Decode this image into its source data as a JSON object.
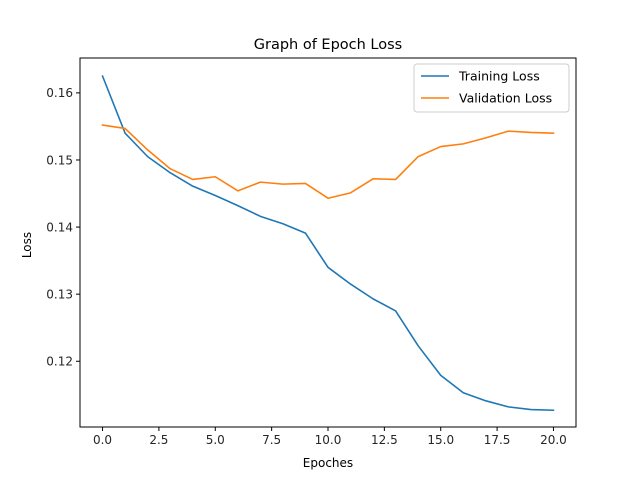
{
  "chart_data": {
    "type": "line",
    "title": "Graph of Epoch Loss",
    "xlabel": "Epoches",
    "ylabel": "Loss",
    "xlim": [
      -1.0,
      21.0
    ],
    "ylim": [
      0.1102,
      0.1652
    ],
    "xticks": [
      "0.0",
      "2.5",
      "5.0",
      "7.5",
      "10.0",
      "12.5",
      "15.0",
      "17.5",
      "20.0"
    ],
    "xtick_values": [
      0,
      2.5,
      5,
      7.5,
      10,
      12.5,
      15,
      17.5,
      20
    ],
    "yticks": [
      "0.12",
      "0.13",
      "0.14",
      "0.15",
      "0.16"
    ],
    "ytick_values": [
      0.12,
      0.13,
      0.14,
      0.15,
      0.16
    ],
    "grid": false,
    "legend_position": "top-right",
    "x": [
      0,
      1,
      2,
      3,
      4,
      5,
      6,
      7,
      8,
      9,
      10,
      11,
      12,
      13,
      14,
      15,
      16,
      17,
      18,
      19,
      20
    ],
    "series": [
      {
        "name": "Training Loss",
        "color": "#1f77b4",
        "values": [
          0.1625,
          0.154,
          0.1505,
          0.1481,
          0.1461,
          0.1447,
          0.1432,
          0.1416,
          0.1405,
          0.1391,
          0.134,
          0.1315,
          0.1293,
          0.1275,
          0.1223,
          0.1179,
          0.1153,
          0.1141,
          0.1132,
          0.1128,
          0.1127
        ]
      },
      {
        "name": "Validation Loss",
        "color": "#ff7f0e",
        "values": [
          0.1552,
          0.1547,
          0.1515,
          0.1487,
          0.1471,
          0.1475,
          0.1454,
          0.1467,
          0.1464,
          0.1465,
          0.1443,
          0.1451,
          0.1472,
          0.1471,
          0.1505,
          0.152,
          0.1524,
          0.1533,
          0.1543,
          0.1541,
          0.154
        ]
      }
    ]
  }
}
